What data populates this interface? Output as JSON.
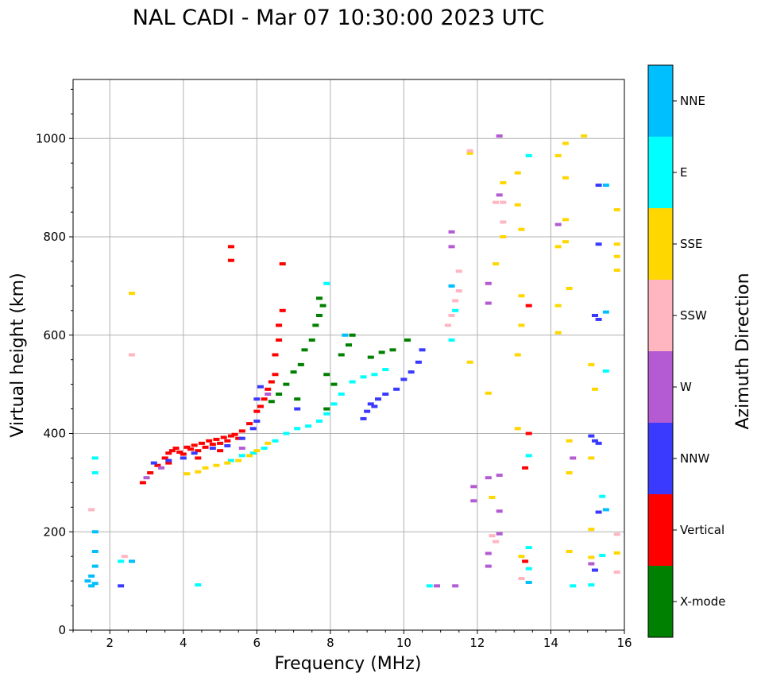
{
  "chart_data": {
    "type": "scatter",
    "title": "NAL CADI - Mar 07 10:30:00 2023 UTC",
    "xlabel": "Frequency (MHz)",
    "ylabel": "Virtual height (km)",
    "xlim": [
      1,
      16
    ],
    "ylim": [
      0,
      1120
    ],
    "xticks": [
      2,
      4,
      6,
      8,
      10,
      12,
      14,
      16
    ],
    "yticks": [
      0,
      200,
      400,
      600,
      800,
      1000
    ],
    "grid": true,
    "colorbar": {
      "label": "Azimuth Direction",
      "categories": [
        {
          "name": "X-mode",
          "color": "#008000"
        },
        {
          "name": "Vertical",
          "color": "#ff0000"
        },
        {
          "name": "NNW",
          "color": "#3a3aff"
        },
        {
          "name": "W",
          "color": "#b45ad2"
        },
        {
          "name": "SSW",
          "color": "#ffb6c1"
        },
        {
          "name": "SSE",
          "color": "#ffd700"
        },
        {
          "name": "E",
          "color": "#00ffff"
        },
        {
          "name": "NNE",
          "color": "#00bfff"
        }
      ]
    },
    "series": [
      {
        "name": "Vertical",
        "points": [
          [
            2.9,
            300
          ],
          [
            3.1,
            320
          ],
          [
            3.3,
            335
          ],
          [
            3.5,
            350
          ],
          [
            3.6,
            360
          ],
          [
            3.7,
            365
          ],
          [
            3.8,
            370
          ],
          [
            3.9,
            362
          ],
          [
            4.0,
            358
          ],
          [
            4.1,
            372
          ],
          [
            4.2,
            368
          ],
          [
            4.3,
            376
          ],
          [
            4.4,
            365
          ],
          [
            4.5,
            380
          ],
          [
            4.6,
            372
          ],
          [
            4.7,
            385
          ],
          [
            4.8,
            378
          ],
          [
            4.9,
            388
          ],
          [
            5.0,
            380
          ],
          [
            5.1,
            392
          ],
          [
            5.2,
            385
          ],
          [
            5.3,
            395
          ],
          [
            5.4,
            398
          ],
          [
            5.5,
            390
          ],
          [
            5.6,
            405
          ],
          [
            5.8,
            420
          ],
          [
            6.0,
            445
          ],
          [
            6.1,
            455
          ],
          [
            6.2,
            470
          ],
          [
            6.3,
            490
          ],
          [
            6.4,
            505
          ],
          [
            6.5,
            520
          ],
          [
            6.5,
            560
          ],
          [
            6.6,
            590
          ],
          [
            6.6,
            620
          ],
          [
            6.7,
            650
          ],
          [
            6.7,
            745
          ],
          [
            5.3,
            780
          ],
          [
            5.3,
            752
          ],
          [
            3.6,
            340
          ],
          [
            4.4,
            350
          ],
          [
            5.0,
            365
          ],
          [
            13.3,
            330
          ],
          [
            13.4,
            400
          ],
          [
            13.4,
            660
          ],
          [
            13.3,
            140
          ]
        ]
      },
      {
        "name": "NNW",
        "points": [
          [
            3.2,
            340
          ],
          [
            3.6,
            345
          ],
          [
            4.0,
            350
          ],
          [
            4.3,
            360
          ],
          [
            4.8,
            370
          ],
          [
            5.2,
            375
          ],
          [
            5.6,
            390
          ],
          [
            5.9,
            410
          ],
          [
            6.0,
            425
          ],
          [
            6.0,
            470
          ],
          [
            6.1,
            495
          ],
          [
            7.1,
            450
          ],
          [
            8.9,
            430
          ],
          [
            9.0,
            445
          ],
          [
            9.1,
            460
          ],
          [
            9.2,
            455
          ],
          [
            9.3,
            470
          ],
          [
            9.5,
            480
          ],
          [
            9.8,
            490
          ],
          [
            10.0,
            510
          ],
          [
            10.2,
            525
          ],
          [
            10.4,
            545
          ],
          [
            10.5,
            570
          ],
          [
            15.2,
            640
          ],
          [
            15.3,
            632
          ],
          [
            15.1,
            395
          ],
          [
            15.2,
            385
          ],
          [
            15.3,
            380
          ],
          [
            15.3,
            240
          ],
          [
            15.2,
            122
          ],
          [
            2.3,
            90
          ],
          [
            15.3,
            785
          ],
          [
            15.3,
            905
          ]
        ]
      },
      {
        "name": "X-mode",
        "points": [
          [
            6.8,
            500
          ],
          [
            7.0,
            525
          ],
          [
            7.2,
            540
          ],
          [
            7.3,
            570
          ],
          [
            7.5,
            590
          ],
          [
            7.6,
            620
          ],
          [
            7.7,
            640
          ],
          [
            7.8,
            660
          ],
          [
            7.7,
            675
          ],
          [
            7.9,
            520
          ],
          [
            7.9,
            450
          ],
          [
            8.1,
            500
          ],
          [
            8.3,
            560
          ],
          [
            8.5,
            580
          ],
          [
            8.6,
            600
          ],
          [
            9.1,
            555
          ],
          [
            9.4,
            565
          ],
          [
            9.7,
            570
          ],
          [
            10.1,
            590
          ],
          [
            6.4,
            465
          ],
          [
            6.6,
            480
          ],
          [
            7.1,
            470
          ]
        ]
      },
      {
        "name": "E",
        "points": [
          [
            5.3,
            345
          ],
          [
            5.6,
            355
          ],
          [
            5.9,
            360
          ],
          [
            6.2,
            370
          ],
          [
            6.5,
            385
          ],
          [
            6.8,
            400
          ],
          [
            7.1,
            410
          ],
          [
            7.4,
            415
          ],
          [
            7.7,
            425
          ],
          [
            7.9,
            440
          ],
          [
            8.1,
            460
          ],
          [
            8.3,
            480
          ],
          [
            8.6,
            505
          ],
          [
            8.9,
            515
          ],
          [
            9.2,
            520
          ],
          [
            9.5,
            530
          ],
          [
            7.9,
            705
          ],
          [
            10.7,
            90
          ],
          [
            4.4,
            92
          ],
          [
            15.5,
            527
          ],
          [
            15.4,
            272
          ],
          [
            15.4,
            152
          ],
          [
            15.1,
            92
          ],
          [
            14.6,
            90
          ],
          [
            13.4,
            125
          ],
          [
            13.4,
            168
          ],
          [
            13.4,
            355
          ],
          [
            13.4,
            965
          ],
          [
            11.3,
            590
          ],
          [
            11.4,
            650
          ],
          [
            2.3,
            140
          ],
          [
            1.6,
            350
          ],
          [
            1.6,
            320
          ]
        ]
      },
      {
        "name": "SSE",
        "points": [
          [
            4.1,
            318
          ],
          [
            4.4,
            322
          ],
          [
            4.6,
            330
          ],
          [
            4.9,
            335
          ],
          [
            5.2,
            340
          ],
          [
            5.5,
            345
          ],
          [
            5.8,
            355
          ],
          [
            6.0,
            365
          ],
          [
            6.3,
            380
          ],
          [
            2.6,
            685
          ],
          [
            12.3,
            482
          ],
          [
            12.4,
            270
          ],
          [
            12.5,
            745
          ],
          [
            12.7,
            800
          ],
          [
            12.7,
            910
          ],
          [
            13.1,
            930
          ],
          [
            13.1,
            865
          ],
          [
            13.2,
            815
          ],
          [
            13.2,
            680
          ],
          [
            13.2,
            620
          ],
          [
            13.1,
            560
          ],
          [
            13.1,
            410
          ],
          [
            13.2,
            150
          ],
          [
            14.2,
            965
          ],
          [
            14.4,
            990
          ],
          [
            14.4,
            920
          ],
          [
            14.4,
            835
          ],
          [
            14.4,
            790
          ],
          [
            14.2,
            780
          ],
          [
            14.2,
            660
          ],
          [
            14.2,
            605
          ],
          [
            14.5,
            695
          ],
          [
            14.5,
            385
          ],
          [
            14.5,
            320
          ],
          [
            14.5,
            160
          ],
          [
            14.9,
            1005
          ],
          [
            15.1,
            540
          ],
          [
            15.2,
            490
          ],
          [
            15.1,
            350
          ],
          [
            15.1,
            205
          ],
          [
            15.1,
            148
          ],
          [
            15.8,
            855
          ],
          [
            15.8,
            785
          ],
          [
            15.8,
            760
          ],
          [
            15.8,
            732
          ],
          [
            15.8,
            157
          ],
          [
            11.8,
            545
          ],
          [
            11.8,
            970
          ]
        ]
      },
      {
        "name": "W",
        "points": [
          [
            3.0,
            310
          ],
          [
            3.4,
            330
          ],
          [
            5.6,
            370
          ],
          [
            6.3,
            480
          ],
          [
            11.3,
            810
          ],
          [
            11.3,
            780
          ],
          [
            12.3,
            665
          ],
          [
            12.3,
            310
          ],
          [
            12.3,
            156
          ],
          [
            12.3,
            130
          ],
          [
            12.6,
            1005
          ],
          [
            12.6,
            885
          ],
          [
            12.6,
            315
          ],
          [
            12.6,
            242
          ],
          [
            12.6,
            196
          ],
          [
            14.2,
            825
          ],
          [
            14.6,
            350
          ],
          [
            15.1,
            135
          ],
          [
            11.9,
            292
          ],
          [
            11.9,
            263
          ],
          [
            11.4,
            90
          ],
          [
            10.9,
            90
          ],
          [
            12.3,
            705
          ]
        ]
      },
      {
        "name": "SSW",
        "points": [
          [
            11.2,
            620
          ],
          [
            11.3,
            640
          ],
          [
            11.4,
            670
          ],
          [
            11.5,
            690
          ],
          [
            11.5,
            730
          ],
          [
            11.8,
            975
          ],
          [
            12.7,
            830
          ],
          [
            12.7,
            870
          ],
          [
            12.5,
            180
          ],
          [
            13.2,
            105
          ],
          [
            15.8,
            195
          ],
          [
            15.8,
            118
          ],
          [
            2.6,
            560
          ],
          [
            2.4,
            150
          ],
          [
            1.5,
            245
          ],
          [
            12.4,
            192
          ],
          [
            12.5,
            870
          ]
        ]
      },
      {
        "name": "NNE",
        "points": [
          [
            1.5,
            90
          ],
          [
            1.6,
            95
          ],
          [
            1.4,
            100
          ],
          [
            1.5,
            110
          ],
          [
            1.6,
            130
          ],
          [
            1.6,
            160
          ],
          [
            1.6,
            200
          ],
          [
            2.6,
            140
          ],
          [
            13.4,
            97
          ],
          [
            15.5,
            245
          ],
          [
            15.5,
            647
          ],
          [
            15.5,
            905
          ],
          [
            11.3,
            700
          ],
          [
            8.4,
            600
          ]
        ]
      }
    ]
  }
}
